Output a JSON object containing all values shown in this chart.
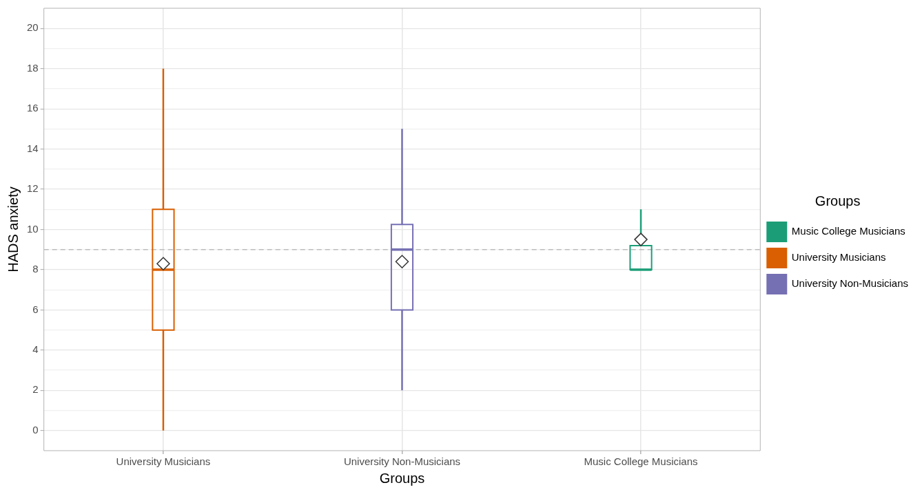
{
  "chart_data": {
    "type": "box",
    "xlabel": "Groups",
    "ylabel": "HADS anxiety",
    "legend_title": "Groups",
    "legend": "right",
    "grid": true,
    "categories": [
      "University Musicians",
      "University Non-Musicians",
      "Music College Musicians"
    ],
    "series": [
      {
        "name": "Music College Musicians",
        "color": "#1b9e77",
        "boxes": [
          null,
          null,
          {
            "low": 8,
            "q1": 8,
            "median": 8,
            "q3": 9.2,
            "high": 11,
            "mean": 9.5
          }
        ]
      },
      {
        "name": "University Musicians",
        "color": "#d95f02",
        "boxes": [
          {
            "low": 0,
            "q1": 5,
            "median": 8,
            "q3": 11,
            "high": 18,
            "mean": 8.3
          },
          null,
          null
        ]
      },
      {
        "name": "University Non-Musicians",
        "color": "#7570b3",
        "boxes": [
          null,
          {
            "low": 2,
            "q1": 6,
            "median": 9,
            "q3": 10.25,
            "high": 15,
            "mean": 8.4
          },
          null
        ]
      }
    ],
    "ylim": [
      -1,
      21
    ],
    "yticks": [
      0,
      {
        "value": 1,
        "label": null
      },
      2,
      {
        "value": 3,
        "label": null
      },
      4,
      {
        "value": 5,
        "label": null
      },
      6,
      {
        "value": 7,
        "label": null
      },
      8,
      {
        "value": 9,
        "label": null
      },
      10,
      {
        "value": 11,
        "label": null
      },
      12,
      {
        "value": 13,
        "label": null
      },
      14,
      {
        "value": 15,
        "label": null
      },
      16,
      {
        "value": 17,
        "label": null
      },
      18,
      {
        "value": 19,
        "label": null
      },
      20
    ],
    "ref_lines": [
      {
        "axis": "y",
        "value": 9,
        "color": "#bdbdbd",
        "line_style": "dashed"
      }
    ]
  }
}
